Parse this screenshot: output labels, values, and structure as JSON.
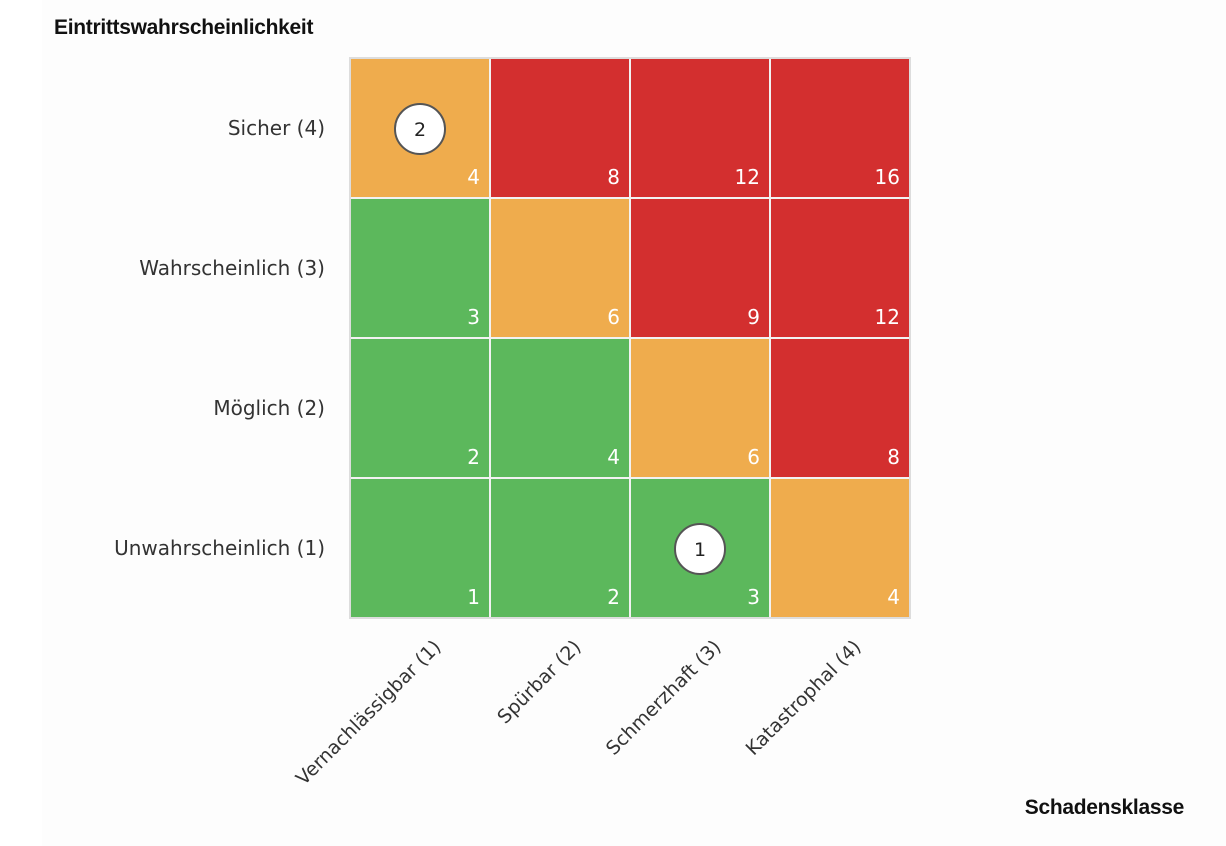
{
  "chart_data": {
    "type": "heatmap",
    "ylabel": "Eintrittswahrscheinlichkeit",
    "xlabel": "Schadensklasse",
    "rows": [
      "Sicher (4)",
      "Wahrscheinlich (3)",
      "Möglich (2)",
      "Unwahrscheinlich (1)"
    ],
    "columns": [
      "Vernachlässigbar (1)",
      "Spürbar (2)",
      "Schmerzhaft (3)",
      "Katastrophal (4)"
    ],
    "values": [
      [
        4,
        8,
        12,
        16
      ],
      [
        3,
        6,
        9,
        12
      ],
      [
        2,
        4,
        6,
        8
      ],
      [
        1,
        2,
        3,
        4
      ]
    ],
    "cell_levels": [
      [
        "medium",
        "high",
        "high",
        "high"
      ],
      [
        "low",
        "medium",
        "high",
        "high"
      ],
      [
        "low",
        "low",
        "medium",
        "high"
      ],
      [
        "low",
        "low",
        "low",
        "medium"
      ]
    ],
    "level_colors": {
      "low": "#5cb85c",
      "medium": "#efac4d",
      "high": "#d32f2f"
    },
    "markers": [
      {
        "row": 0,
        "col": 0,
        "label": "2"
      },
      {
        "row": 3,
        "col": 2,
        "label": "1"
      }
    ],
    "grid": true,
    "legend": "none"
  }
}
